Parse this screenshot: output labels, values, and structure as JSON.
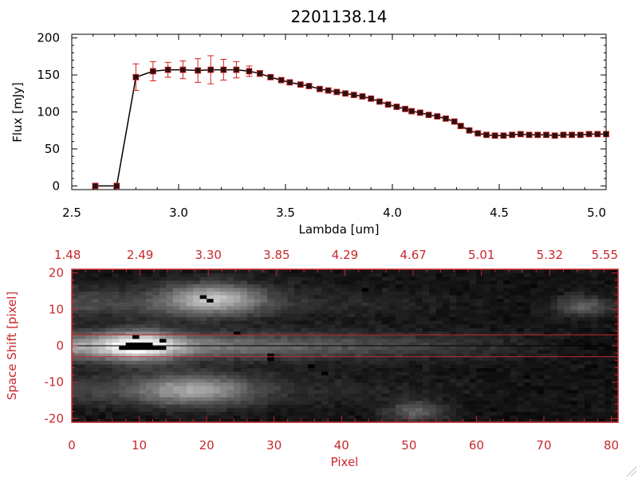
{
  "chart_data": [
    {
      "type": "line",
      "title": "2201138.14",
      "xlabel": "Lambda [um]",
      "ylabel": "Flux [mJy]",
      "xlim": [
        2.5,
        5.0
      ],
      "ylim": [
        -5,
        205
      ],
      "x_ticks": [
        "2.5",
        "3.0",
        "3.5",
        "4.0",
        "4.5",
        "5.0"
      ],
      "y_ticks": [
        "0",
        "50",
        "100",
        "150",
        "200"
      ],
      "grid": false,
      "colors": {
        "line": "#000000",
        "marker": "#2a1010",
        "error_bar": "#d21e1e"
      },
      "series": [
        {
          "x": [
            2.61,
            2.71,
            2.8,
            2.88,
            2.95,
            3.02,
            3.09,
            3.15,
            3.21,
            3.27,
            3.33,
            3.38,
            3.43,
            3.48,
            3.52,
            3.57,
            3.61,
            3.66,
            3.7,
            3.74,
            3.78,
            3.82,
            3.86,
            3.9,
            3.94,
            3.98,
            4.02,
            4.06,
            4.09,
            4.13,
            4.17,
            4.21,
            4.25,
            4.29,
            4.32,
            4.36,
            4.4,
            4.44,
            4.48,
            4.52,
            4.56,
            4.6,
            4.64,
            4.68,
            4.72,
            4.76,
            4.8,
            4.84,
            4.88,
            4.92,
            4.96,
            5.0
          ],
          "y": [
            0,
            0,
            147,
            155,
            157,
            157,
            156,
            157,
            157,
            157,
            155,
            152,
            147,
            143,
            140,
            137,
            135,
            131,
            129,
            127,
            125,
            123,
            121,
            118,
            114,
            110,
            107,
            104,
            101,
            99,
            96,
            94,
            91,
            87,
            81,
            75,
            71,
            69,
            68,
            68,
            69,
            70,
            69,
            69,
            69,
            68,
            69,
            69,
            69,
            70,
            70,
            70
          ],
          "yerr": [
            0,
            0,
            18,
            13,
            10,
            12,
            16,
            19,
            14,
            11,
            7,
            4,
            3,
            2,
            2,
            2,
            2,
            2,
            2,
            2,
            2,
            2,
            2,
            2,
            2,
            2,
            2,
            2,
            2,
            2,
            2,
            2,
            2,
            2,
            2,
            2,
            2,
            2,
            2,
            2,
            2,
            2,
            2,
            2,
            2,
            2,
            2,
            2,
            2,
            2,
            2,
            2
          ]
        }
      ]
    },
    {
      "type": "heatmap",
      "xlabel": "Pixel",
      "ylabel": "Space Shift [pixel]",
      "xlim": [
        0,
        81
      ],
      "ylim": [
        -21,
        21
      ],
      "x_ticks": [
        "0",
        "10",
        "20",
        "30",
        "40",
        "50",
        "60",
        "70",
        "80"
      ],
      "y_ticks": [
        "-20",
        "-10",
        "0",
        "10",
        "20"
      ],
      "top_ticks": [
        "1.48",
        "2.49",
        "3.30",
        "3.85",
        "4.29",
        "4.67",
        "5.01",
        "5.32",
        "5.55"
      ],
      "colormap": "grayscale",
      "extraction_window": [
        -3,
        3
      ],
      "colors": {
        "axes": "#c8282d",
        "window_lines": "#c8282d",
        "trace_line": "#000000"
      },
      "bright_regions": [
        {
          "x": 10,
          "y": 0
        },
        {
          "x": 21,
          "y": 13
        },
        {
          "x": 18,
          "y": -12
        },
        {
          "x": 51,
          "y": -18
        },
        {
          "x": 76,
          "y": 11
        }
      ],
      "dark_pixels": [
        [
          7,
          -1
        ],
        [
          8,
          -1
        ],
        [
          8,
          0
        ],
        [
          9,
          -1
        ],
        [
          9,
          0
        ],
        [
          10,
          -1
        ],
        [
          10,
          0
        ],
        [
          11,
          -1
        ],
        [
          11,
          0
        ],
        [
          12,
          -1
        ],
        [
          13,
          -1
        ],
        [
          13,
          1
        ],
        [
          9,
          2
        ],
        [
          19,
          13
        ],
        [
          20,
          12
        ],
        [
          24,
          3
        ],
        [
          29,
          -3
        ],
        [
          29,
          -4
        ],
        [
          35,
          -6
        ],
        [
          37,
          -8
        ],
        [
          43,
          15
        ]
      ]
    }
  ]
}
